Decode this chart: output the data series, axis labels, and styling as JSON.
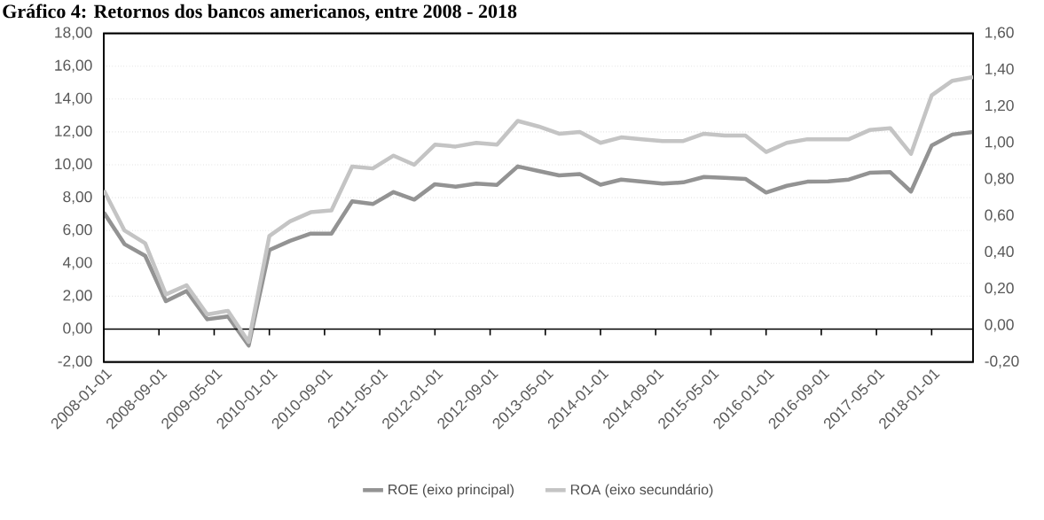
{
  "chart_data": {
    "type": "line",
    "title": "Gráfico 4: Retornos dos bancos americanos, entre 2008 - 2018",
    "x": [
      "2008-01-01",
      "2008-04-01",
      "2008-07-01",
      "2008-10-01",
      "2009-01-01",
      "2009-04-01",
      "2009-07-01",
      "2009-10-01",
      "2010-01-01",
      "2010-04-01",
      "2010-07-01",
      "2010-10-01",
      "2011-01-01",
      "2011-04-01",
      "2011-07-01",
      "2011-10-01",
      "2012-01-01",
      "2012-04-01",
      "2012-07-01",
      "2012-10-01",
      "2013-01-01",
      "2013-04-01",
      "2013-07-01",
      "2013-10-01",
      "2014-01-01",
      "2014-04-01",
      "2014-07-01",
      "2014-10-01",
      "2015-01-01",
      "2015-04-01",
      "2015-07-01",
      "2015-10-01",
      "2016-01-01",
      "2016-04-01",
      "2016-07-01",
      "2016-10-01",
      "2017-01-01",
      "2017-04-01",
      "2017-07-01",
      "2017-10-01",
      "2018-01-01",
      "2018-04-01",
      "2018-07-01"
    ],
    "series": [
      {
        "name": "ROE (eixo principal)",
        "color": "#939393",
        "values": [
          7.1,
          5.17,
          4.46,
          1.7,
          2.32,
          0.6,
          0.77,
          -1.0,
          4.81,
          5.37,
          5.81,
          5.81,
          7.78,
          7.61,
          8.34,
          7.88,
          8.82,
          8.67,
          8.86,
          8.78,
          9.9,
          9.62,
          9.35,
          9.43,
          8.79,
          9.1,
          8.97,
          8.85,
          8.93,
          9.26,
          9.2,
          9.14,
          8.31,
          8.72,
          8.97,
          8.99,
          9.1,
          9.51,
          9.55,
          8.37,
          11.17,
          11.84,
          12.0
        ]
      },
      {
        "name": "ROA (eixo secundário)",
        "color": "#c4c4c4",
        "axis": "y2",
        "values": [
          0.74,
          0.52,
          0.45,
          0.17,
          0.22,
          0.06,
          0.08,
          -0.09,
          0.49,
          0.57,
          0.62,
          0.63,
          0.87,
          0.86,
          0.93,
          0.88,
          0.99,
          0.98,
          1.0,
          0.99,
          1.12,
          1.09,
          1.05,
          1.06,
          1.0,
          1.03,
          1.02,
          1.01,
          1.01,
          1.05,
          1.04,
          1.04,
          0.95,
          1.0,
          1.02,
          1.02,
          1.02,
          1.07,
          1.08,
          0.94,
          1.26,
          1.34,
          1.36
        ]
      }
    ],
    "xlim": [
      "2008-01-01",
      "2018-07-01"
    ],
    "xticks": [
      "2008-01-01",
      "2008-09-01",
      "2009-05-01",
      "2010-01-01",
      "2010-09-01",
      "2011-05-01",
      "2012-01-01",
      "2012-09-01",
      "2013-05-01",
      "2014-01-01",
      "2014-09-01",
      "2015-05-01",
      "2016-01-01",
      "2016-09-01",
      "2017-05-01",
      "2018-01-01"
    ],
    "ylim": [
      -2,
      18
    ],
    "yticks": [
      {
        "value": -2,
        "label": "-2,00"
      },
      {
        "value": 0,
        "label": "0,00"
      },
      {
        "value": 2,
        "label": "2,00"
      },
      {
        "value": 4,
        "label": "4,00"
      },
      {
        "value": 6,
        "label": "6,00"
      },
      {
        "value": 8,
        "label": "8,00"
      },
      {
        "value": 10,
        "label": "10,00"
      },
      {
        "value": 12,
        "label": "12,00"
      },
      {
        "value": 14,
        "label": "14,00"
      },
      {
        "value": 16,
        "label": "16,00"
      },
      {
        "value": 18,
        "label": "18,00"
      }
    ],
    "y2lim": [
      -0.2,
      1.6
    ],
    "y2ticks": [
      {
        "value": -0.2,
        "label": "-0,20"
      },
      {
        "value": 0,
        "label": "0,00"
      },
      {
        "value": 0.2,
        "label": "0,20"
      },
      {
        "value": 0.4,
        "label": "0,40"
      },
      {
        "value": 0.6,
        "label": "0,60"
      },
      {
        "value": 0.8,
        "label": "0,80"
      },
      {
        "value": 1.0,
        "label": "1,00"
      },
      {
        "value": 1.2,
        "label": "1,20"
      },
      {
        "value": 1.4,
        "label": "1,40"
      },
      {
        "value": 1.6,
        "label": "1,60"
      }
    ],
    "grid": "y",
    "legend": "bottom",
    "marker": "none",
    "line_style": "solid"
  }
}
